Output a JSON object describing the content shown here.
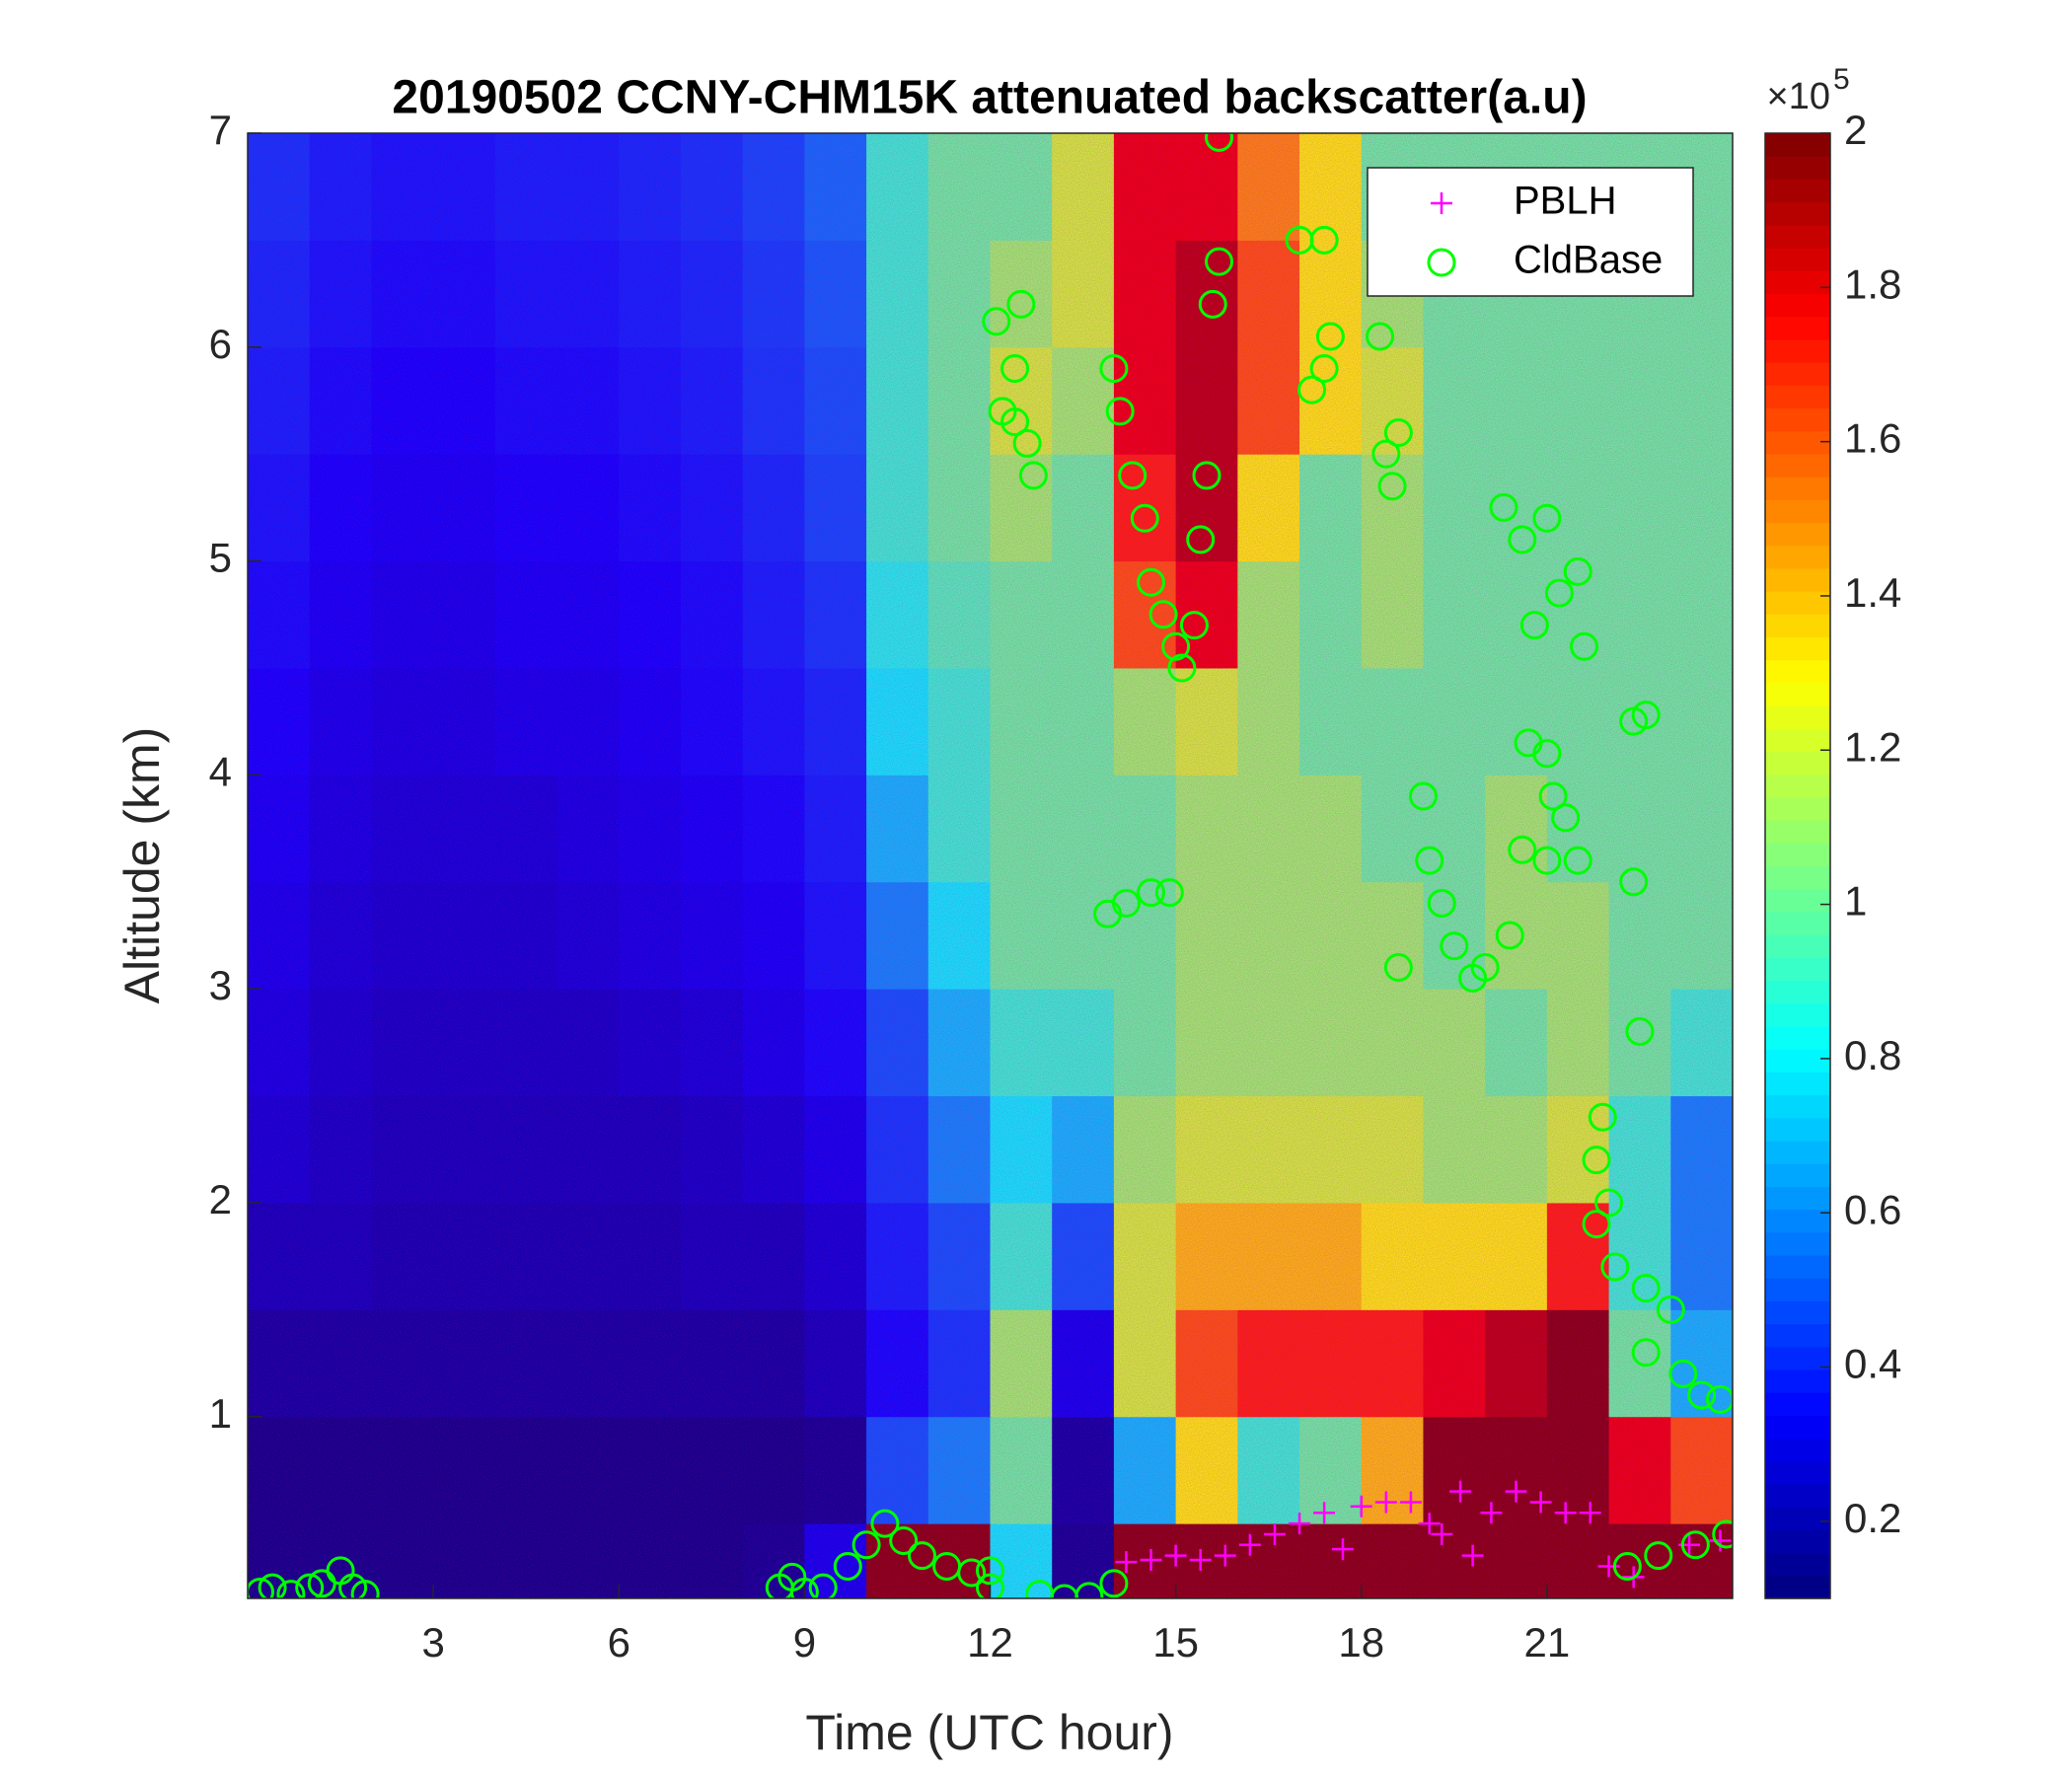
{
  "chart_data": {
    "type": "heatmap",
    "title": "20190502 CCNY-CHM15K attenuated backscatter(a.u)",
    "x_label": "Time (UTC hour)",
    "y_label": "Altitude (km)",
    "colormap": "jet",
    "x": [
      0.5,
      1.5,
      2.5,
      3.5,
      4.5,
      5.5,
      6.5,
      7.5,
      8.5,
      9.5,
      10.5,
      11.5,
      12.5,
      13.5,
      14.5,
      15.5,
      16.5,
      17.5,
      18.5,
      19.5,
      20.5,
      21.5,
      22.5,
      23.5
    ],
    "y": [
      0.25,
      0.75,
      1.25,
      1.75,
      2.25,
      2.75,
      3.25,
      3.75,
      4.25,
      4.75,
      5.25,
      5.75,
      6.25,
      6.75
    ],
    "z": [
      [
        0.1,
        0.1,
        0.1,
        0.1,
        0.1,
        0.1,
        0.1,
        0.1,
        0.12,
        0.3,
        2,
        2,
        0.8,
        0.12,
        2,
        2,
        2,
        2,
        2,
        2,
        2,
        2,
        2,
        2
      ],
      [
        0.1,
        0.1,
        0.1,
        0.1,
        0.1,
        0.1,
        0.1,
        0.1,
        0.1,
        0.12,
        0.5,
        0.6,
        1.0,
        0.15,
        0.7,
        1.3,
        0.9,
        1.0,
        1.4,
        2,
        2,
        2,
        1.8,
        1.6
      ],
      [
        0.15,
        0.15,
        0.15,
        0.15,
        0.15,
        0.15,
        0.15,
        0.15,
        0.15,
        0.2,
        0.35,
        0.45,
        1.1,
        0.3,
        1.2,
        1.6,
        1.7,
        1.7,
        1.7,
        1.8,
        1.9,
        2,
        1.0,
        0.7
      ],
      [
        0.2,
        0.2,
        0.18,
        0.18,
        0.18,
        0.18,
        0.18,
        0.2,
        0.2,
        0.25,
        0.4,
        0.5,
        0.9,
        0.5,
        1.2,
        1.4,
        1.4,
        1.4,
        1.3,
        1.3,
        1.3,
        1.7,
        0.9,
        0.6
      ],
      [
        0.25,
        0.22,
        0.2,
        0.2,
        0.2,
        0.2,
        0.2,
        0.22,
        0.25,
        0.3,
        0.45,
        0.6,
        0.8,
        0.7,
        1.1,
        1.2,
        1.2,
        1.2,
        1.2,
        1.1,
        1.1,
        1.2,
        0.9,
        0.6
      ],
      [
        0.28,
        0.24,
        0.22,
        0.22,
        0.22,
        0.22,
        0.24,
        0.26,
        0.3,
        0.35,
        0.5,
        0.7,
        0.9,
        0.9,
        1.0,
        1.1,
        1.1,
        1.1,
        1.1,
        1.1,
        1.0,
        1.1,
        1.0,
        0.9
      ],
      [
        0.3,
        0.26,
        0.24,
        0.24,
        0.24,
        0.26,
        0.28,
        0.3,
        0.32,
        0.38,
        0.6,
        0.8,
        1.0,
        1.0,
        1.0,
        1.1,
        1.1,
        1.1,
        1.1,
        1.0,
        1.1,
        1.1,
        1.0,
        1.0
      ],
      [
        0.32,
        0.28,
        0.26,
        0.26,
        0.26,
        0.28,
        0.3,
        0.32,
        0.35,
        0.4,
        0.7,
        0.9,
        1.0,
        1.0,
        1.0,
        1.1,
        1.1,
        1.1,
        1.0,
        1.0,
        1.1,
        1.0,
        1.0,
        1.0
      ],
      [
        0.34,
        0.3,
        0.28,
        0.28,
        0.3,
        0.3,
        0.32,
        0.35,
        0.38,
        0.42,
        0.8,
        0.9,
        1.0,
        1.0,
        1.1,
        1.2,
        1.1,
        1.0,
        1.0,
        1.0,
        1.0,
        1.0,
        1.0,
        1.0
      ],
      [
        0.36,
        0.32,
        0.3,
        0.3,
        0.32,
        0.32,
        0.34,
        0.36,
        0.4,
        0.45,
        0.85,
        0.95,
        1.0,
        1.0,
        1.6,
        1.8,
        1.1,
        1.0,
        1.1,
        1.0,
        1.0,
        1.0,
        1.0,
        1.0
      ],
      [
        0.38,
        0.34,
        0.32,
        0.32,
        0.34,
        0.34,
        0.36,
        0.38,
        0.42,
        0.48,
        0.9,
        1.0,
        1.1,
        1.0,
        1.7,
        1.9,
        1.3,
        1.0,
        1.1,
        1.0,
        1.0,
        1.0,
        1.0,
        1.0
      ],
      [
        0.4,
        0.36,
        0.34,
        0.34,
        0.36,
        0.36,
        0.38,
        0.4,
        0.45,
        0.5,
        0.9,
        1.0,
        1.2,
        1.1,
        1.8,
        1.9,
        1.6,
        1.3,
        1.2,
        1.0,
        1.0,
        1.0,
        1.0,
        1.0
      ],
      [
        0.42,
        0.38,
        0.36,
        0.36,
        0.38,
        0.38,
        0.4,
        0.42,
        0.46,
        0.52,
        0.9,
        1.0,
        1.1,
        1.2,
        1.8,
        1.9,
        1.6,
        1.3,
        1.1,
        1.0,
        1.0,
        1.0,
        1.0,
        1.0
      ],
      [
        0.44,
        0.4,
        0.38,
        0.38,
        0.4,
        0.4,
        0.42,
        0.44,
        0.48,
        0.55,
        0.9,
        1.0,
        1.0,
        1.2,
        1.8,
        1.8,
        1.5,
        1.3,
        1.0,
        1.0,
        1.0,
        1.0,
        1.0,
        1.0
      ]
    ],
    "xlim": [
      0,
      24
    ],
    "ylim": [
      0.15,
      7
    ],
    "xticks": [
      3,
      6,
      9,
      12,
      15,
      18,
      21
    ],
    "yticks": [
      1,
      2,
      3,
      4,
      5,
      6,
      7
    ],
    "clim": [
      0.1,
      2
    ],
    "cticks": [
      0.2,
      0.4,
      0.6,
      0.8,
      1,
      1.2,
      1.4,
      1.6,
      1.8,
      2
    ],
    "c_multiplier_base": "×10",
    "c_multiplier_exponent": "5",
    "legend_position": "upper right",
    "series": [
      {
        "name": "PBLH",
        "type": "scatter",
        "marker": "plus",
        "color": "#ff00ff",
        "x": [
          14.2,
          14.6,
          15.0,
          15.4,
          15.8,
          16.2,
          16.6,
          17.0,
          17.4,
          17.7,
          18.0,
          18.4,
          18.8,
          19.1,
          19.3,
          19.6,
          19.8,
          20.1,
          20.5,
          20.9,
          21.3,
          21.7,
          22.0,
          22.4,
          23.3,
          23.8
        ],
        "values": [
          0.32,
          0.33,
          0.35,
          0.33,
          0.35,
          0.4,
          0.45,
          0.5,
          0.55,
          0.38,
          0.58,
          0.6,
          0.6,
          0.5,
          0.45,
          0.65,
          0.35,
          0.55,
          0.65,
          0.6,
          0.55,
          0.55,
          0.3,
          0.25,
          0.4,
          0.42
        ]
      },
      {
        "name": "CldBase",
        "type": "scatter",
        "marker": "circle",
        "color": "#00ff00",
        "x": [
          0.2,
          0.4,
          0.7,
          1.0,
          1.2,
          1.5,
          1.7,
          1.9,
          8.6,
          8.8,
          9.0,
          9.3,
          9.7,
          10.0,
          10.3,
          10.6,
          10.9,
          11.3,
          11.7,
          12.0,
          12.0,
          12.1,
          12.5,
          12.2,
          12.4,
          12.6,
          12.7,
          12.4,
          12.8,
          13.2,
          13.6,
          14.0,
          13.9,
          14.2,
          14.6,
          14.9,
          14.0,
          14.1,
          14.3,
          14.5,
          14.6,
          14.8,
          15.0,
          15.1,
          15.3,
          15.4,
          15.5,
          15.6,
          15.7,
          15.7,
          17.0,
          17.4,
          17.2,
          17.4,
          17.5,
          18.3,
          18.4,
          18.6,
          18.5,
          19.0,
          19.1,
          19.3,
          19.5,
          19.8,
          18.6,
          20.0,
          20.4,
          20.3,
          20.6,
          20.8,
          21.0,
          21.2,
          21.5,
          21.6,
          20.7,
          21.0,
          21.1,
          21.3,
          21.0,
          20.6,
          21.5,
          21.8,
          21.9,
          21.8,
          22.0,
          22.1,
          22.4,
          22.6,
          22.4,
          22.5,
          22.6,
          22.6,
          22.3,
          22.8,
          23.0,
          23.2,
          23.5,
          23.8,
          23.4,
          23.9
        ],
        "values": [
          0.18,
          0.2,
          0.17,
          0.2,
          0.22,
          0.28,
          0.2,
          0.17,
          0.2,
          0.25,
          0.18,
          0.2,
          0.3,
          0.4,
          0.5,
          0.42,
          0.35,
          0.3,
          0.27,
          0.28,
          0.2,
          6.12,
          6.2,
          5.7,
          5.65,
          5.55,
          5.4,
          5.9,
          0.17,
          0.15,
          0.16,
          0.22,
          3.35,
          3.4,
          3.45,
          3.45,
          5.9,
          5.7,
          5.4,
          5.2,
          4.9,
          4.75,
          4.6,
          4.5,
          4.7,
          5.1,
          5.4,
          6.2,
          6.4,
          6.98,
          6.5,
          6.5,
          5.8,
          5.9,
          6.05,
          6.05,
          5.5,
          5.6,
          5.35,
          3.9,
          3.6,
          3.4,
          3.2,
          3.05,
          3.1,
          3.1,
          3.25,
          5.25,
          5.1,
          4.7,
          5.2,
          4.85,
          4.95,
          4.6,
          4.15,
          4.1,
          3.9,
          3.8,
          3.6,
          3.65,
          3.6,
          2.2,
          2.4,
          1.9,
          2.0,
          1.7,
          4.25,
          4.28,
          3.5,
          2.8,
          1.6,
          1.3,
          0.3,
          0.35,
          1.5,
          1.2,
          1.1,
          1.08,
          0.4,
          0.45
        ]
      }
    ]
  }
}
